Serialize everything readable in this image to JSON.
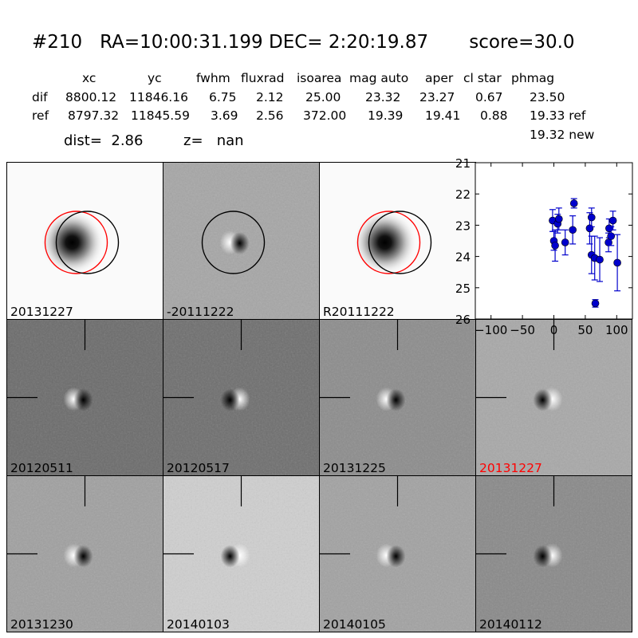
{
  "header": {
    "title": "#210   RA=10:00:31.199 DEC= 2:20:19.87       score=30.0",
    "cols": [
      "xc",
      "yc",
      "fwhm",
      "fluxrad",
      "isoarea",
      "mag auto",
      "aper",
      "cl star",
      "phmag"
    ],
    "rows": [
      {
        "label": "dif",
        "values": [
          "8800.12",
          "11846.16",
          "6.75",
          "2.12",
          "25.00",
          "23.32",
          "23.27",
          "0.67",
          "23.50"
        ]
      },
      {
        "label": "ref",
        "values": [
          "8797.32",
          "11845.59",
          "3.69",
          "2.56",
          "372.00",
          "19.39",
          "19.41",
          "0.88",
          "19.33 ref"
        ]
      }
    ],
    "extra_phmag": "19.32 new",
    "dist": "dist=  2.86",
    "z": "z=   nan"
  },
  "stamps": [
    {
      "label": "20131227",
      "style": "star",
      "bg": "#fafafa",
      "circles": [
        "red",
        "black"
      ],
      "label_color": "#000000"
    },
    {
      "label": "-20111222",
      "style": "diffcirc",
      "bg": "#a6a6a6",
      "circles": [
        "black"
      ],
      "label_color": "#000000"
    },
    {
      "label": "R20111222",
      "style": "star",
      "bg": "#fafafa",
      "circles": [
        "red",
        "black"
      ],
      "label_color": "#000000"
    },
    {
      "label": "20120511",
      "style": "dipole",
      "bg": "#6b6b6b",
      "label_color": "#000000"
    },
    {
      "label": "20120517",
      "style": "dipole",
      "bg": "#6e6e6e",
      "label_color": "#000000"
    },
    {
      "label": "20131225",
      "style": "dipole",
      "bg": "#8c8c8c",
      "label_color": "#000000"
    },
    {
      "label": "20131227",
      "style": "dipole",
      "bg": "#a8a8a8",
      "label_color": "#ff0000"
    },
    {
      "label": "20131230",
      "style": "dipole",
      "bg": "#a0a0a0",
      "label_color": "#000000"
    },
    {
      "label": "20140103",
      "style": "dipole",
      "bg": "#cfcfcf",
      "label_color": "#000000"
    },
    {
      "label": "20140105",
      "style": "dipole",
      "bg": "#a2a2a2",
      "label_color": "#000000"
    },
    {
      "label": "20140112",
      "style": "dipole",
      "bg": "#898989",
      "label_color": "#000000"
    }
  ],
  "chart_data": {
    "type": "scatter",
    "xlim": [
      -125,
      125
    ],
    "ylim": [
      26,
      21
    ],
    "xticks": [
      -100,
      -50,
      0,
      50,
      100
    ],
    "yticks": [
      21,
      22,
      23,
      24,
      25,
      26
    ],
    "color": "#0000cc",
    "points": [
      {
        "x": -2,
        "y": 22.85,
        "err": 0.35
      },
      {
        "x": 0,
        "y": 23.5,
        "err": 0.3
      },
      {
        "x": 2,
        "y": 23.65,
        "err": 0.5
      },
      {
        "x": 6,
        "y": 22.95,
        "err": 0.3
      },
      {
        "x": 8,
        "y": 22.8,
        "err": 0.35
      },
      {
        "x": 18,
        "y": 23.55,
        "err": 0.4
      },
      {
        "x": 30,
        "y": 23.15,
        "err": 0.45
      },
      {
        "x": 32,
        "y": 22.3,
        "err": 0.15
      },
      {
        "x": 57,
        "y": 23.1,
        "err": 0.5
      },
      {
        "x": 60,
        "y": 22.75,
        "err": 0.3
      },
      {
        "x": 60,
        "y": 23.95,
        "err": 0.6
      },
      {
        "x": 65,
        "y": 24.05,
        "err": 0.7
      },
      {
        "x": 66,
        "y": 25.5,
        "err": 0.12
      },
      {
        "x": 73,
        "y": 24.1,
        "err": 0.7
      },
      {
        "x": 87,
        "y": 23.55,
        "err": 0.3
      },
      {
        "x": 88,
        "y": 23.1,
        "err": 0.3
      },
      {
        "x": 91,
        "y": 23.35,
        "err": 0.3
      },
      {
        "x": 94,
        "y": 22.85,
        "err": 0.3
      },
      {
        "x": 101,
        "y": 24.2,
        "err": 0.9
      }
    ]
  }
}
